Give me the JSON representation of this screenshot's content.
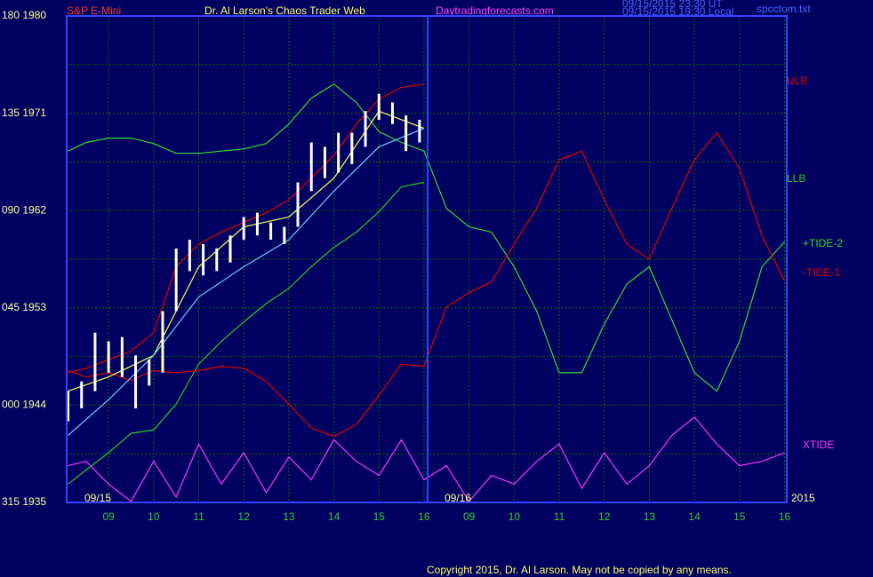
{
  "chart_data": {
    "type": "line",
    "instrument": "S&P E-Mini",
    "title": "Dr. Al Larson's Chaos Trader Web",
    "website": "Daytradingforecasts.com",
    "timestamps": [
      "09/15/2015 23:30 UT",
      "09/15/2015 19:30 Local"
    ],
    "file": "spcctom.txt",
    "copyright": "Copyright 2015, Dr. Al Larson. May not be copied by any means.",
    "annotations": [
      "09/15",
      "09/16",
      "2015"
    ],
    "ylim": [
      1935,
      1980
    ],
    "yticks": [
      {
        "value": 1980,
        "label": "180 1980"
      },
      {
        "value": 1971,
        "label": "135 1971"
      },
      {
        "value": 1962,
        "label": "090 1962"
      },
      {
        "value": 1953,
        "label": "045 1953"
      },
      {
        "value": 1944,
        "label": "000 1944"
      },
      {
        "value": 1935,
        "label": "315 1935"
      }
    ],
    "minor_yticks": [
      1975.5,
      1966.5,
      1957.5,
      1948.5,
      1939.5
    ],
    "xlim": [
      -0.93,
      15.05
    ],
    "xticks": [
      {
        "value": 0,
        "label": "09"
      },
      {
        "value": 1,
        "label": "10"
      },
      {
        "value": 2,
        "label": "11"
      },
      {
        "value": 3,
        "label": "12"
      },
      {
        "value": 4,
        "label": "13"
      },
      {
        "value": 5,
        "label": "14"
      },
      {
        "value": 6,
        "label": "15"
      },
      {
        "value": 7,
        "label": "16"
      },
      {
        "value": 8,
        "label": "09"
      },
      {
        "value": 9,
        "label": "10"
      },
      {
        "value": 10,
        "label": "11"
      },
      {
        "value": 11,
        "label": "12"
      },
      {
        "value": 12,
        "label": "13"
      },
      {
        "value": 13,
        "label": "14"
      },
      {
        "value": 14,
        "label": "15"
      },
      {
        "value": 15,
        "label": "16"
      }
    ],
    "grid": true,
    "bars": {
      "color": "#ffffff",
      "x": [
        -0.9,
        -0.6,
        -0.3,
        0,
        0.3,
        0.6,
        0.9,
        1.2,
        1.5,
        1.8,
        2.1,
        2.4,
        2.7,
        3.0,
        3.3,
        3.6,
        3.9,
        4.2,
        4.5,
        4.8,
        5.1,
        5.4,
        5.7,
        6.0,
        6.3,
        6.6,
        6.9
      ],
      "high": [
        1945.3,
        1946.2,
        1950.7,
        1949.9,
        1950.3,
        1948.6,
        1948.2,
        1952.7,
        1958.5,
        1959.3,
        1958.9,
        1958.5,
        1959.7,
        1961.4,
        1961.8,
        1960.9,
        1960.5,
        1964.6,
        1968.3,
        1967.9,
        1969.2,
        1969.2,
        1971.2,
        1972.8,
        1972.0,
        1970.8,
        1970.4
      ],
      "low": [
        1942.5,
        1943.7,
        1945.3,
        1947.0,
        1946.6,
        1943.7,
        1945.8,
        1947.0,
        1952.7,
        1956.4,
        1956.0,
        1956.4,
        1957.2,
        1959.3,
        1959.7,
        1959.3,
        1958.9,
        1960.5,
        1963.8,
        1965.0,
        1965.5,
        1966.3,
        1967.9,
        1970.4,
        1970.0,
        1967.5,
        1968.3
      ]
    },
    "series": [
      {
        "name": "ULB",
        "color": "#e00000",
        "x": [
          -0.9,
          -0.5,
          0,
          0.5,
          1,
          1.5,
          2,
          2.5,
          3,
          3.5,
          4,
          4.5,
          5,
          5.5,
          6,
          6.5,
          7
        ],
        "values": [
          1947.0,
          1947.4,
          1948.2,
          1949.0,
          1950.7,
          1956.8,
          1958.9,
          1960.0,
          1960.9,
          1961.8,
          1963.0,
          1965.0,
          1967.1,
          1970.0,
          1972.3,
          1973.4,
          1973.7
        ]
      },
      {
        "name": "LLB",
        "color": "#22cc22",
        "x": [
          -0.9,
          -0.5,
          0,
          0.5,
          1,
          1.5,
          2,
          2.5,
          3,
          3.5,
          4,
          4.5,
          5,
          5.5,
          6,
          6.5,
          7
        ],
        "values": [
          1936.7,
          1938.0,
          1939.6,
          1941.4,
          1941.7,
          1944.1,
          1947.8,
          1949.9,
          1951.7,
          1953.4,
          1954.8,
          1956.8,
          1958.6,
          1960.0,
          1961.9,
          1964.2,
          1964.6
        ]
      },
      {
        "name": "+TIDE-2",
        "color": "#33dd33",
        "x": [
          -0.9,
          -0.5,
          0,
          0.5,
          1,
          1.5,
          2,
          2.5,
          3,
          3.5,
          4,
          4.5,
          5,
          5.5,
          6,
          6.5,
          7,
          7.5,
          8,
          8.5,
          9,
          9.5,
          10,
          10.5,
          11,
          11.5,
          12,
          12.5,
          13,
          13.5,
          14,
          14.5,
          15
        ],
        "values": [
          1967.5,
          1968.3,
          1968.7,
          1968.7,
          1968.2,
          1967.3,
          1967.3,
          1967.5,
          1967.7,
          1968.2,
          1970.0,
          1972.4,
          1973.7,
          1972.0,
          1969.3,
          1968.3,
          1967.5,
          1962.2,
          1960.5,
          1960.0,
          1956.8,
          1952.7,
          1947.0,
          1947.0,
          1951.5,
          1955.2,
          1956.8,
          1951.9,
          1947.0,
          1945.3,
          1949.9,
          1956.8,
          1959.1
        ]
      },
      {
        "name": "-TIDE-1",
        "color": "#e00000",
        "x": [
          -0.9,
          -0.5,
          0,
          0.5,
          1,
          1.5,
          2,
          2.5,
          3,
          3.5,
          4,
          4.5,
          5,
          5.5,
          6,
          6.5,
          7,
          7.5,
          8,
          8.5,
          9,
          9.5,
          10,
          10.5,
          11,
          11.5,
          12,
          12.5,
          13,
          13.5,
          14,
          14.5,
          15
        ],
        "values": [
          1947.2,
          1946.6,
          1947.0,
          1946.3,
          1947.2,
          1947.0,
          1947.2,
          1947.6,
          1947.4,
          1946.2,
          1944.1,
          1941.9,
          1941.1,
          1942.2,
          1944.9,
          1947.8,
          1947.6,
          1953.1,
          1954.4,
          1955.4,
          1958.9,
          1962.2,
          1966.7,
          1967.5,
          1963.0,
          1958.9,
          1957.5,
          1962.2,
          1966.7,
          1969.2,
          1965.9,
          1959.7,
          1955.5
        ]
      },
      {
        "name": "XTIDE",
        "color": "#ff33ff",
        "x": [
          -0.9,
          -0.5,
          0,
          0.5,
          1,
          1.5,
          2,
          2.5,
          3,
          3.5,
          4,
          4.5,
          5,
          5.5,
          6,
          6.5,
          7,
          7.5,
          8,
          8.5,
          9,
          9.5,
          10,
          10.5,
          11,
          11.5,
          12,
          12.5,
          13,
          13.5,
          14,
          14.5,
          15
        ],
        "values": [
          1938.4,
          1938.8,
          1936.7,
          1935.1,
          1938.8,
          1935.5,
          1940.4,
          1936.7,
          1939.6,
          1935.9,
          1939.2,
          1937.1,
          1940.8,
          1938.8,
          1937.5,
          1940.8,
          1937.1,
          1938.4,
          1935.1,
          1937.5,
          1936.7,
          1938.8,
          1940.4,
          1936.3,
          1939.6,
          1936.7,
          1938.4,
          1941.2,
          1942.9,
          1940.4,
          1938.4,
          1938.8,
          1939.6
        ]
      },
      {
        "color": "#ffff55",
        "x": [
          -0.9,
          0,
          1,
          2,
          3,
          4,
          5,
          6,
          7
        ],
        "values": [
          1945.3,
          1946.6,
          1948.6,
          1956.8,
          1960.5,
          1961.4,
          1965.0,
          1971.2,
          1969.6
        ]
      },
      {
        "color": "#66ccff",
        "x": [
          -0.9,
          0,
          1,
          2,
          3,
          4,
          5,
          6,
          7
        ],
        "values": [
          1941.2,
          1944.5,
          1948.6,
          1954.0,
          1956.8,
          1959.3,
          1963.8,
          1967.9,
          1969.6
        ]
      }
    ]
  }
}
